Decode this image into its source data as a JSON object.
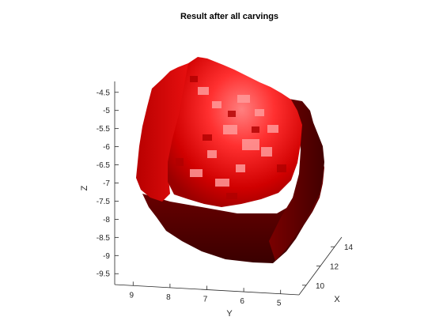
{
  "chart_data": {
    "type": "surface3d",
    "title": "Result after all carvings",
    "xlabel": "X",
    "ylabel": "Y",
    "zlabel": "Z",
    "z_ticks": [
      "-4.5",
      "-5",
      "-5.5",
      "-6",
      "-6.5",
      "-7",
      "-7.5",
      "-8",
      "-8.5",
      "-9",
      "-9.5"
    ],
    "y_ticks": [
      "9",
      "8",
      "7",
      "6",
      "5"
    ],
    "x_ticks": [
      "10",
      "12",
      "14"
    ],
    "zlim": [
      -9.8,
      -4.2
    ],
    "ylim": [
      4.5,
      9.5
    ],
    "xlim": [
      9,
      15
    ],
    "grid": false,
    "colors": {
      "highlight": "#ff7a7a",
      "lit": "#ff2a2a",
      "mid": "#d40000",
      "shade": "#8b0000",
      "dark": "#4d0000"
    }
  }
}
